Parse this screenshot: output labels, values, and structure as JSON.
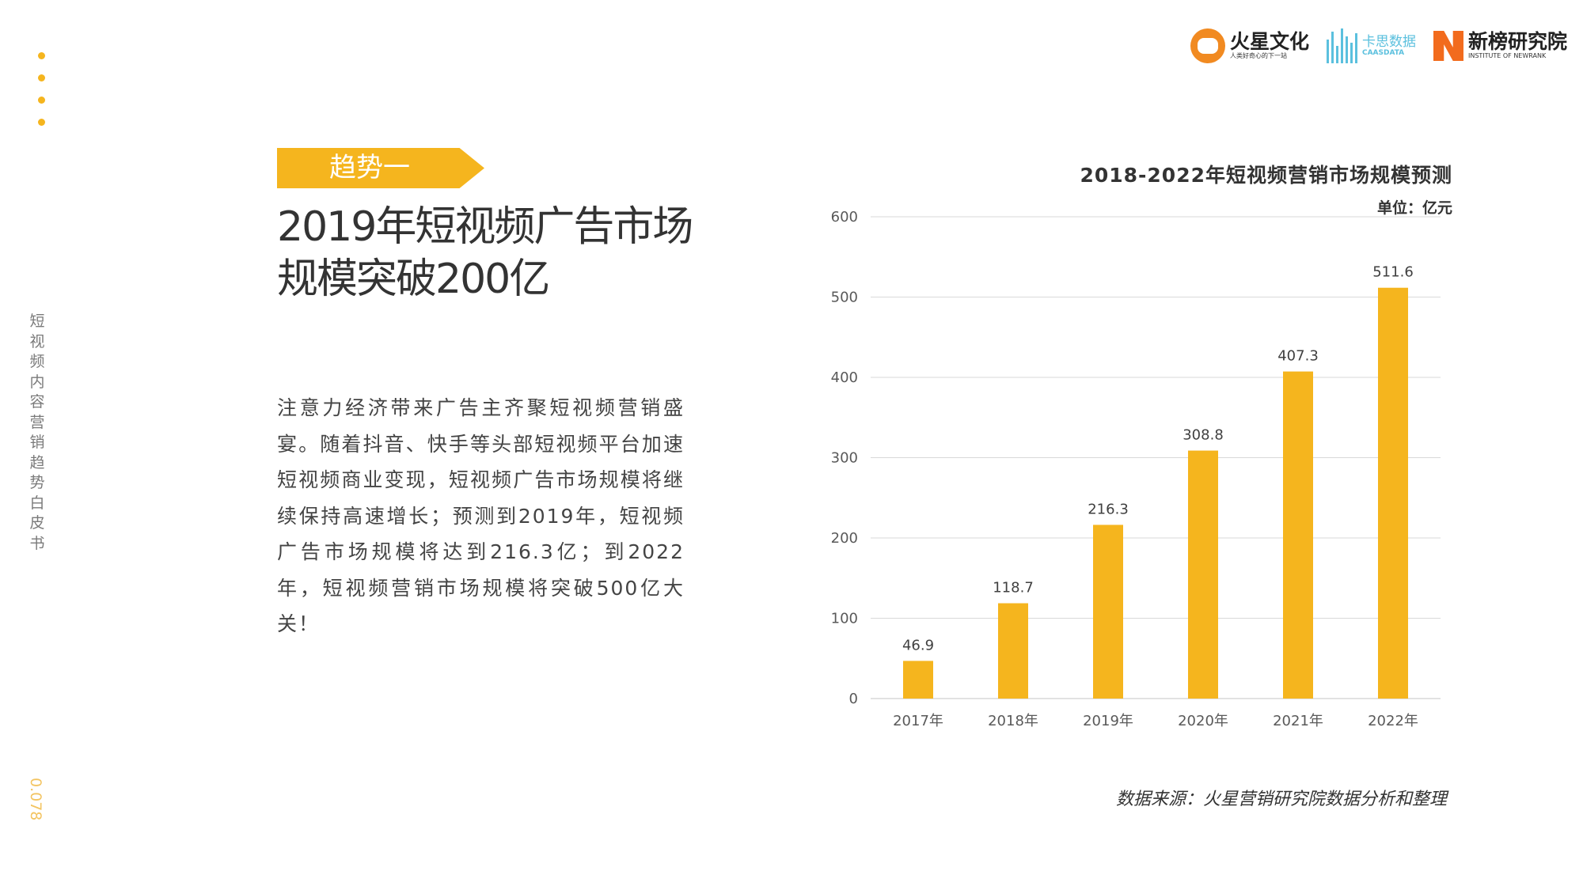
{
  "side": {
    "title": "短视频内容营销趋势白皮书",
    "page_number": "0.078"
  },
  "logos": {
    "huoxing": {
      "name": "火星文化",
      "tagline": "人类好奇心的下一站"
    },
    "kaxing": {
      "name": "卡思数据",
      "tagline": "CAASDATA"
    },
    "xinbang": {
      "name": "新榜研究院",
      "tagline": "INSTITUTE OF NEWRANK"
    }
  },
  "trend_tag": "趋势一",
  "headline": "2019年短视频广告市场规模突破200亿",
  "body": "注意力经济带来广告主齐聚短视频营销盛宴。随着抖音、快手等头部短视频平台加速短视频商业变现，短视频广告市场规模将继续保持高速增长；预测到2019年，短视频广告市场规模将达到216.3亿；到2022年，短视频营销市场规模将突破500亿大关！",
  "chart_data": {
    "type": "bar",
    "title": "2018-2022年短视频营销市场规模预测",
    "unit_label": "单位：亿元",
    "categories": [
      "2017年",
      "2018年",
      "2019年",
      "2020年",
      "2021年",
      "2022年"
    ],
    "values": [
      46.9,
      118.7,
      216.3,
      308.8,
      407.3,
      511.6
    ],
    "value_labels": [
      "46.9",
      "118.7",
      "216.3",
      "308.8",
      "407.3",
      "511.6"
    ],
    "y_ticks": [
      "0",
      "100",
      "200",
      "300",
      "400",
      "500",
      "600"
    ],
    "ylim": [
      0,
      600
    ],
    "grid": true,
    "bar_color": "#f5b51e",
    "grid_color": "#d9d9d9",
    "axis_text_color": "#595959"
  },
  "source_note": "数据来源：火星营销研究院数据分析和整理"
}
